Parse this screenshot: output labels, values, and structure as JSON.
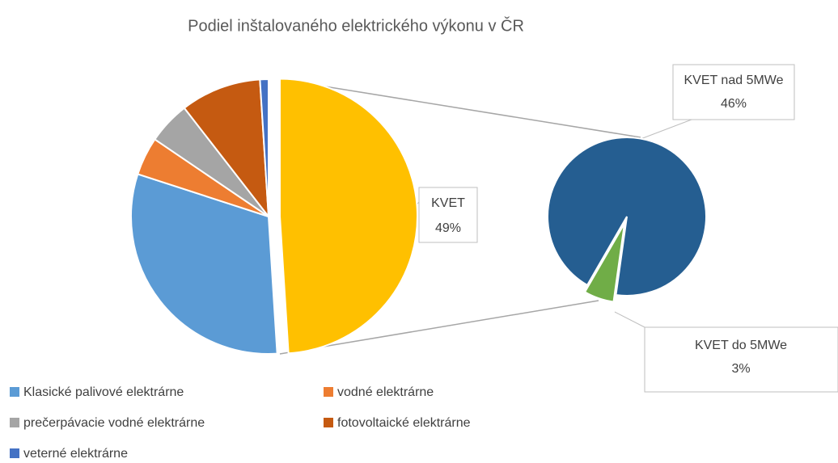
{
  "chart_data": {
    "type": "pie",
    "title": "Podiel inštalovaného elektrického výkonu v ČR",
    "categories": [
      "Klasické palivové elektrárne",
      "vodné elektrárne",
      "prečerpávacie vodné elektrárne",
      "fotovoltaické elektrárne",
      "veterné elektrárne"
    ],
    "values": [
      31,
      4.5,
      5,
      9.5,
      1
    ],
    "colors": [
      "#5b9bd5",
      "#ed7d31",
      "#a5a5a5",
      "#c55a11",
      "#4472c4"
    ],
    "split": {
      "name": "KVET",
      "value": 49,
      "value_label": "49%",
      "color": "#ffc000"
    },
    "secondary": {
      "categories": [
        "KVET nad 5MWe",
        "KVET do 5MWe"
      ],
      "values": [
        46,
        3
      ],
      "value_labels": [
        "46%",
        "3%"
      ],
      "colors": [
        "#255e91",
        "#70ad47"
      ]
    }
  }
}
